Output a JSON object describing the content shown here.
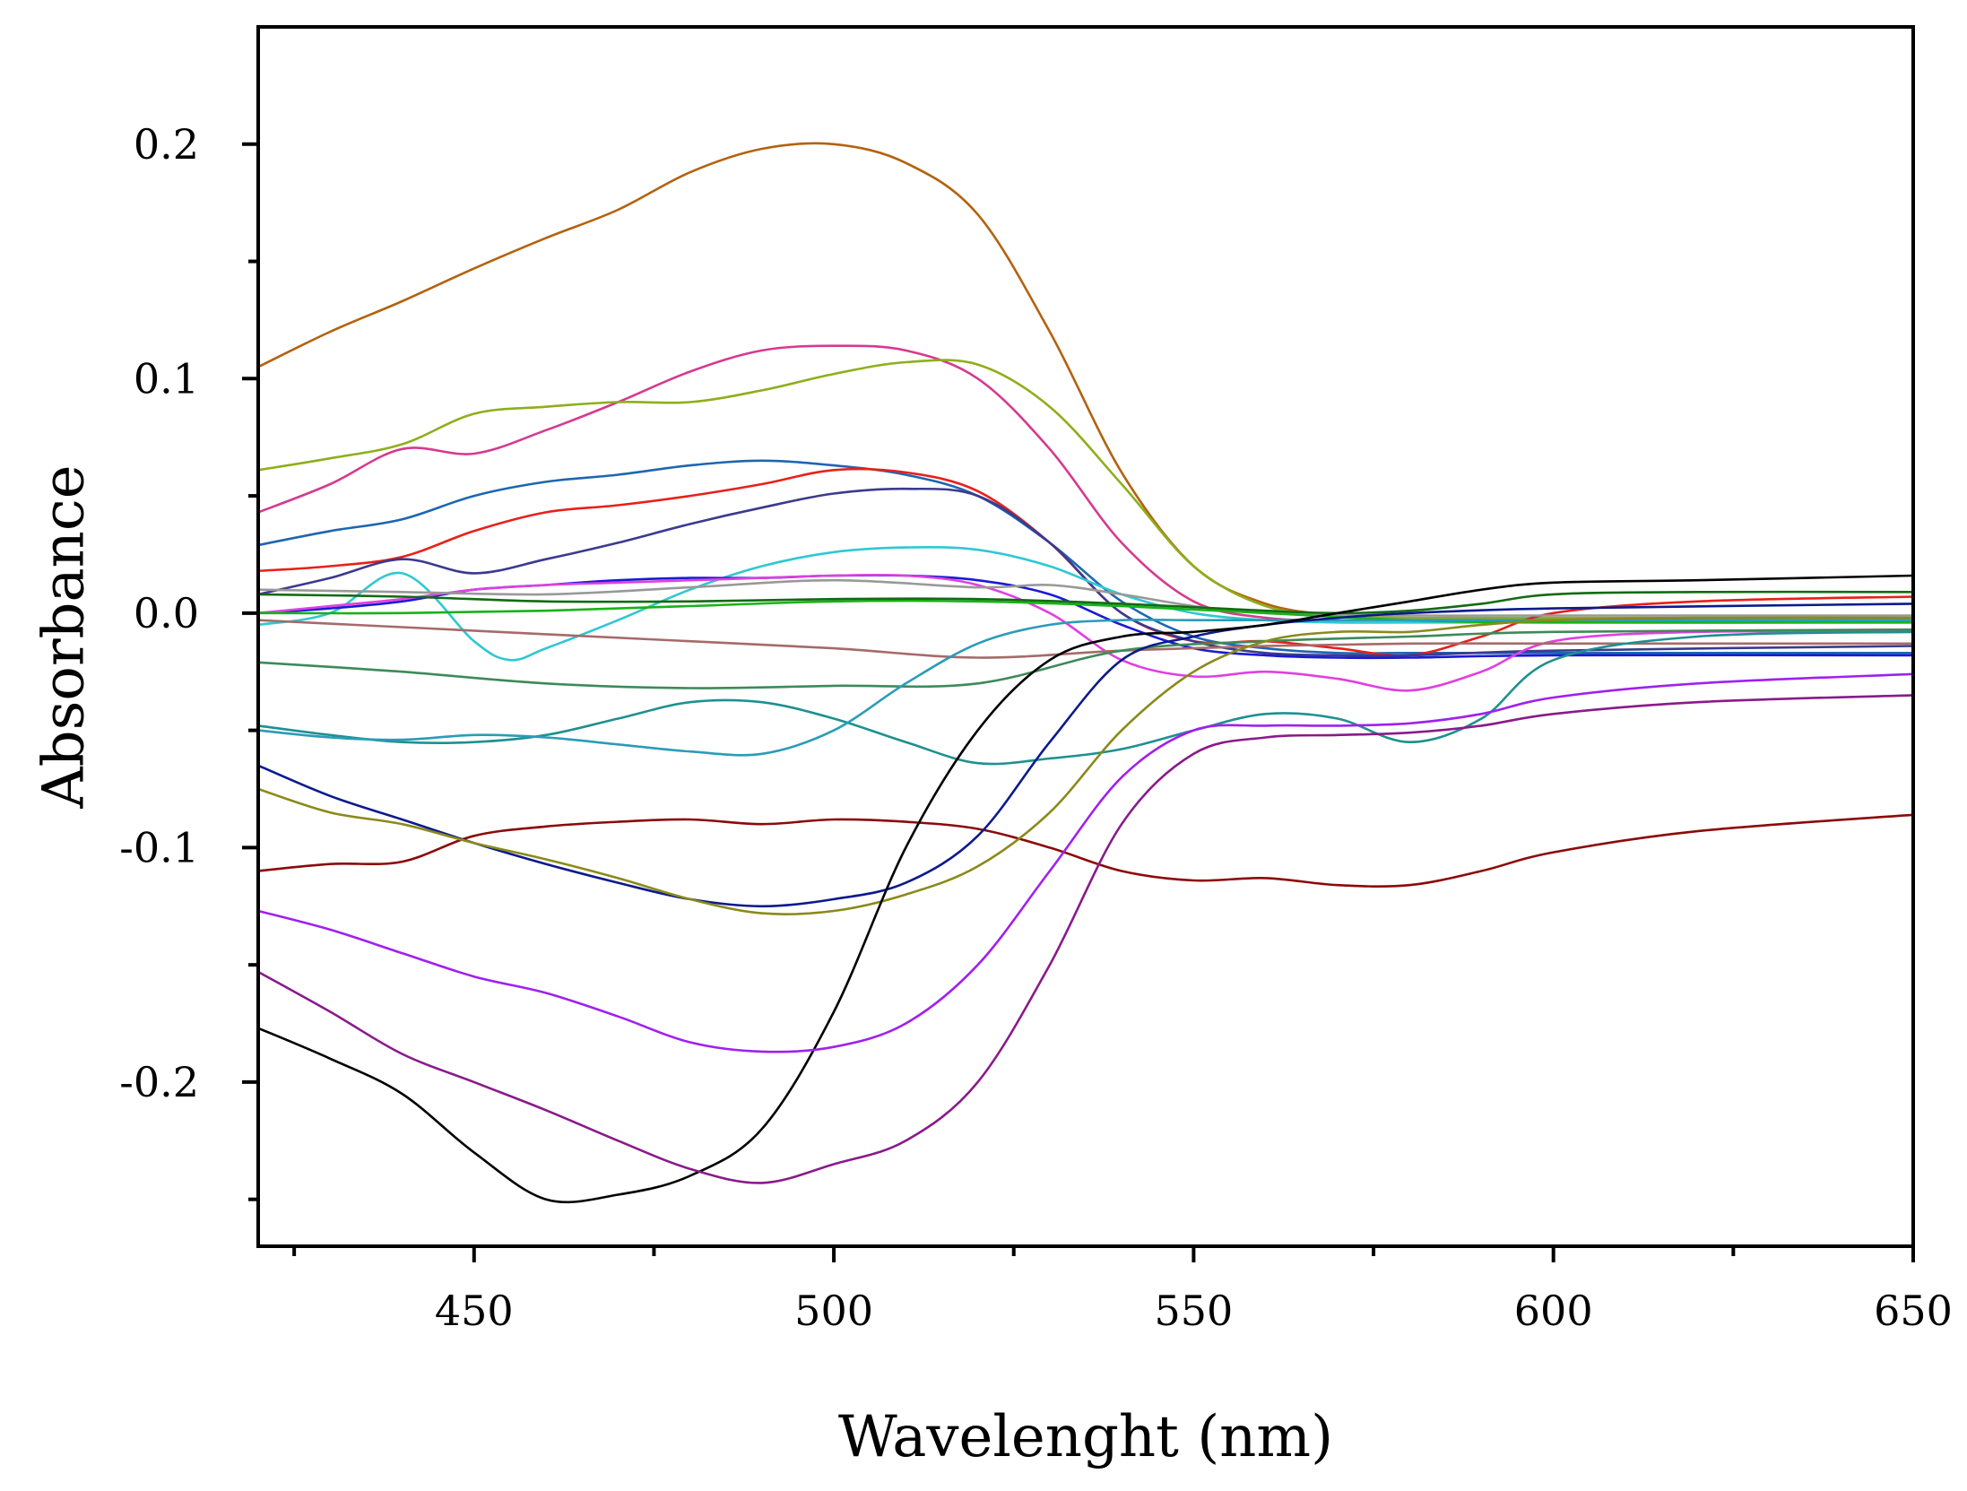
{
  "chart_data": {
    "type": "line",
    "title": "",
    "xlabel": "Wavelenght (nm)",
    "ylabel": "Absorbance",
    "xlim": [
      420,
      650
    ],
    "ylim": [
      -0.27,
      0.25
    ],
    "x_ticks": [
      450,
      500,
      550,
      600,
      650
    ],
    "x_tick_labels": [
      "450",
      "500",
      "550",
      "600",
      "650"
    ],
    "x_minor_ticks": [
      425,
      475,
      525,
      575,
      625
    ],
    "y_ticks": [
      -0.2,
      -0.1,
      0.0,
      0.1,
      0.2
    ],
    "y_tick_labels": [
      "-0.2",
      "-0.1",
      "0.0",
      "0.1",
      "0.2"
    ],
    "y_minor_ticks": [
      -0.25,
      -0.15,
      -0.05,
      0.05,
      0.15
    ],
    "grid": false,
    "legend": "none",
    "series": [
      {
        "name": "brown-orange",
        "color": "#b3620f",
        "x": [
          420,
          430,
          440,
          450,
          460,
          470,
          480,
          490,
          500,
          510,
          520,
          530,
          540,
          550,
          560,
          570,
          580,
          590,
          600,
          620,
          650
        ],
        "y": [
          0.105,
          0.12,
          0.133,
          0.147,
          0.16,
          0.172,
          0.188,
          0.198,
          0.2,
          0.192,
          0.17,
          0.12,
          0.06,
          0.02,
          0.004,
          -0.001,
          -0.003,
          -0.003,
          -0.003,
          -0.003,
          -0.003
        ]
      },
      {
        "name": "magenta-pink",
        "color": "#d63a8f",
        "x": [
          420,
          430,
          440,
          450,
          460,
          470,
          480,
          490,
          500,
          510,
          520,
          530,
          540,
          550,
          560,
          570,
          580,
          600,
          650
        ],
        "y": [
          0.043,
          0.055,
          0.07,
          0.068,
          0.078,
          0.09,
          0.103,
          0.112,
          0.114,
          0.112,
          0.1,
          0.07,
          0.03,
          0.005,
          -0.002,
          -0.003,
          -0.003,
          -0.003,
          -0.003
        ]
      },
      {
        "name": "olive-green",
        "color": "#8fae1b",
        "x": [
          420,
          430,
          440,
          450,
          460,
          470,
          480,
          490,
          500,
          510,
          520,
          530,
          540,
          550,
          560,
          570,
          580,
          600,
          650
        ],
        "y": [
          0.061,
          0.066,
          0.072,
          0.085,
          0.088,
          0.09,
          0.09,
          0.095,
          0.102,
          0.107,
          0.106,
          0.088,
          0.055,
          0.02,
          0.003,
          -0.001,
          -0.002,
          -0.002,
          -0.002
        ]
      },
      {
        "name": "steel-blue",
        "color": "#1e66b0",
        "x": [
          420,
          430,
          440,
          450,
          460,
          470,
          480,
          490,
          500,
          510,
          520,
          530,
          540,
          550,
          560,
          570,
          580,
          600,
          650
        ],
        "y": [
          0.029,
          0.035,
          0.04,
          0.05,
          0.056,
          0.059,
          0.063,
          0.065,
          0.063,
          0.059,
          0.05,
          0.03,
          0.005,
          -0.01,
          -0.015,
          -0.017,
          -0.017,
          -0.017,
          -0.017
        ]
      },
      {
        "name": "red",
        "color": "#e8201a",
        "x": [
          420,
          430,
          440,
          450,
          460,
          470,
          480,
          490,
          500,
          510,
          520,
          530,
          540,
          550,
          560,
          570,
          580,
          590,
          600,
          620,
          650
        ],
        "y": [
          0.018,
          0.02,
          0.024,
          0.035,
          0.043,
          0.046,
          0.05,
          0.055,
          0.061,
          0.06,
          0.052,
          0.03,
          0.0,
          -0.012,
          -0.012,
          -0.015,
          -0.018,
          -0.01,
          0.0,
          0.005,
          0.007
        ]
      },
      {
        "name": "indigo",
        "color": "#3b3a8f",
        "x": [
          420,
          430,
          440,
          450,
          460,
          470,
          480,
          490,
          500,
          510,
          520,
          530,
          540,
          550,
          560,
          570,
          580,
          600,
          650
        ],
        "y": [
          0.008,
          0.015,
          0.023,
          0.017,
          0.023,
          0.03,
          0.038,
          0.045,
          0.051,
          0.053,
          0.05,
          0.03,
          0.0,
          -0.012,
          -0.017,
          -0.018,
          -0.018,
          -0.016,
          -0.014
        ]
      },
      {
        "name": "cyan",
        "color": "#2ec8d4",
        "x": [
          420,
          430,
          440,
          450,
          455,
          460,
          470,
          480,
          490,
          500,
          510,
          520,
          530,
          540,
          550,
          560,
          570,
          580,
          600,
          650
        ],
        "y": [
          -0.005,
          0.0,
          0.017,
          -0.012,
          -0.02,
          -0.015,
          -0.003,
          0.01,
          0.02,
          0.026,
          0.028,
          0.027,
          0.02,
          0.008,
          0.0,
          -0.003,
          -0.004,
          -0.004,
          -0.004,
          -0.004
        ]
      },
      {
        "name": "blue",
        "color": "#1a1ad6",
        "x": [
          420,
          430,
          440,
          450,
          460,
          470,
          480,
          490,
          500,
          510,
          520,
          530,
          540,
          550,
          560,
          570,
          580,
          600,
          650
        ],
        "y": [
          0.0,
          0.002,
          0.005,
          0.01,
          0.012,
          0.014,
          0.015,
          0.015,
          0.016,
          0.016,
          0.014,
          0.008,
          -0.005,
          -0.015,
          -0.018,
          -0.019,
          -0.019,
          -0.018,
          -0.018
        ]
      },
      {
        "name": "violet-pink",
        "color": "#e040e0",
        "x": [
          420,
          430,
          440,
          450,
          460,
          470,
          480,
          490,
          500,
          510,
          520,
          530,
          540,
          550,
          560,
          570,
          580,
          590,
          600,
          620,
          650
        ],
        "y": [
          0.0,
          0.003,
          0.006,
          0.01,
          0.012,
          0.013,
          0.014,
          0.015,
          0.016,
          0.016,
          0.012,
          0.0,
          -0.02,
          -0.027,
          -0.025,
          -0.028,
          -0.033,
          -0.025,
          -0.012,
          -0.008,
          -0.008
        ]
      },
      {
        "name": "gray",
        "color": "#999999",
        "x": [
          420,
          440,
          460,
          480,
          500,
          520,
          530,
          540,
          550,
          560,
          580,
          600,
          650
        ],
        "y": [
          0.01,
          0.009,
          0.008,
          0.011,
          0.014,
          0.011,
          0.012,
          0.008,
          0.003,
          0.0,
          -0.001,
          -0.001,
          -0.001
        ]
      },
      {
        "name": "green",
        "color": "#17b317",
        "x": [
          420,
          440,
          460,
          480,
          500,
          520,
          540,
          560,
          580,
          600,
          650
        ],
        "y": [
          0.0,
          0.0,
          0.001,
          0.003,
          0.005,
          0.005,
          0.003,
          0.0,
          -0.003,
          -0.004,
          -0.004
        ]
      },
      {
        "name": "dark-green",
        "color": "#126b12",
        "x": [
          420,
          440,
          460,
          480,
          500,
          520,
          540,
          560,
          570,
          580,
          590,
          600,
          620,
          650
        ],
        "y": [
          0.008,
          0.007,
          0.005,
          0.005,
          0.006,
          0.006,
          0.004,
          0.001,
          0.0,
          0.001,
          0.004,
          0.008,
          0.009,
          0.009
        ]
      },
      {
        "name": "mauve",
        "color": "#a66a6a",
        "x": [
          420,
          440,
          460,
          480,
          500,
          520,
          540,
          560,
          580,
          600,
          650
        ],
        "y": [
          -0.003,
          -0.006,
          -0.009,
          -0.012,
          -0.015,
          -0.019,
          -0.016,
          -0.014,
          -0.013,
          -0.013,
          -0.013
        ]
      },
      {
        "name": "sea-green",
        "color": "#3d8a5a",
        "x": [
          420,
          440,
          460,
          480,
          500,
          520,
          540,
          560,
          580,
          600,
          650
        ],
        "y": [
          -0.021,
          -0.025,
          -0.03,
          -0.032,
          -0.031,
          -0.03,
          -0.016,
          -0.012,
          -0.01,
          -0.008,
          -0.007
        ]
      },
      {
        "name": "teal",
        "color": "#1e9090",
        "x": [
          420,
          430,
          440,
          450,
          460,
          470,
          480,
          490,
          500,
          510,
          520,
          530,
          540,
          550,
          560,
          570,
          580,
          590,
          600,
          620,
          650
        ],
        "y": [
          -0.048,
          -0.052,
          -0.055,
          -0.055,
          -0.052,
          -0.045,
          -0.038,
          -0.038,
          -0.045,
          -0.055,
          -0.064,
          -0.062,
          -0.058,
          -0.05,
          -0.043,
          -0.045,
          -0.055,
          -0.045,
          -0.02,
          -0.01,
          -0.008
        ]
      },
      {
        "name": "light-teal",
        "color": "#2a9cb8",
        "x": [
          420,
          430,
          440,
          450,
          460,
          470,
          480,
          490,
          500,
          510,
          520,
          530,
          540,
          550,
          560,
          600,
          650
        ],
        "y": [
          -0.05,
          -0.053,
          -0.054,
          -0.052,
          -0.053,
          -0.056,
          -0.059,
          -0.06,
          -0.05,
          -0.03,
          -0.013,
          -0.005,
          -0.003,
          -0.003,
          -0.003,
          -0.003,
          -0.003
        ]
      },
      {
        "name": "dark-red",
        "color": "#8b0a0a",
        "x": [
          420,
          430,
          440,
          450,
          460,
          470,
          480,
          490,
          500,
          510,
          520,
          530,
          540,
          550,
          560,
          570,
          580,
          590,
          600,
          620,
          650
        ],
        "y": [
          -0.11,
          -0.107,
          -0.106,
          -0.095,
          -0.091,
          -0.089,
          -0.088,
          -0.09,
          -0.088,
          -0.089,
          -0.092,
          -0.1,
          -0.11,
          -0.114,
          -0.113,
          -0.116,
          -0.116,
          -0.11,
          -0.102,
          -0.093,
          -0.086
        ]
      },
      {
        "name": "navy",
        "color": "#0b1a8c",
        "x": [
          420,
          430,
          440,
          450,
          460,
          470,
          480,
          490,
          500,
          510,
          520,
          530,
          540,
          550,
          560,
          570,
          580,
          600,
          650
        ],
        "y": [
          -0.065,
          -0.078,
          -0.088,
          -0.098,
          -0.107,
          -0.115,
          -0.122,
          -0.125,
          -0.122,
          -0.115,
          -0.095,
          -0.055,
          -0.02,
          -0.01,
          -0.005,
          -0.002,
          0.0,
          0.002,
          0.004
        ]
      },
      {
        "name": "olive",
        "color": "#8a8a1a",
        "x": [
          420,
          430,
          440,
          450,
          460,
          470,
          480,
          490,
          500,
          510,
          520,
          530,
          540,
          550,
          560,
          570,
          580,
          590,
          600,
          620,
          650
        ],
        "y": [
          -0.075,
          -0.085,
          -0.09,
          -0.098,
          -0.105,
          -0.113,
          -0.122,
          -0.128,
          -0.127,
          -0.12,
          -0.108,
          -0.085,
          -0.05,
          -0.025,
          -0.012,
          -0.008,
          -0.008,
          -0.005,
          -0.003,
          -0.002,
          -0.002
        ]
      },
      {
        "name": "black",
        "color": "#000000",
        "x": [
          420,
          430,
          440,
          450,
          460,
          470,
          480,
          490,
          500,
          510,
          520,
          530,
          540,
          550,
          560,
          570,
          580,
          590,
          600,
          620,
          650
        ],
        "y": [
          -0.177,
          -0.19,
          -0.205,
          -0.23,
          -0.25,
          -0.248,
          -0.24,
          -0.22,
          -0.17,
          -0.1,
          -0.05,
          -0.02,
          -0.01,
          -0.008,
          -0.005,
          0.0,
          0.005,
          0.01,
          0.013,
          0.014,
          0.016
        ]
      },
      {
        "name": "purple",
        "color": "#a020f0",
        "x": [
          420,
          430,
          440,
          450,
          460,
          470,
          480,
          490,
          500,
          510,
          520,
          530,
          540,
          550,
          560,
          570,
          580,
          590,
          600,
          620,
          650
        ],
        "y": [
          -0.127,
          -0.135,
          -0.145,
          -0.155,
          -0.162,
          -0.172,
          -0.183,
          -0.187,
          -0.185,
          -0.175,
          -0.15,
          -0.11,
          -0.07,
          -0.05,
          -0.048,
          -0.048,
          -0.047,
          -0.043,
          -0.036,
          -0.03,
          -0.026
        ]
      },
      {
        "name": "plum",
        "color": "#8a1a8a",
        "x": [
          420,
          430,
          440,
          450,
          460,
          470,
          480,
          490,
          500,
          510,
          520,
          530,
          540,
          550,
          560,
          570,
          580,
          590,
          600,
          620,
          650
        ],
        "y": [
          -0.153,
          -0.17,
          -0.188,
          -0.2,
          -0.212,
          -0.225,
          -0.237,
          -0.243,
          -0.235,
          -0.225,
          -0.2,
          -0.15,
          -0.09,
          -0.06,
          -0.053,
          -0.052,
          -0.051,
          -0.048,
          -0.043,
          -0.038,
          -0.035
        ]
      }
    ]
  }
}
